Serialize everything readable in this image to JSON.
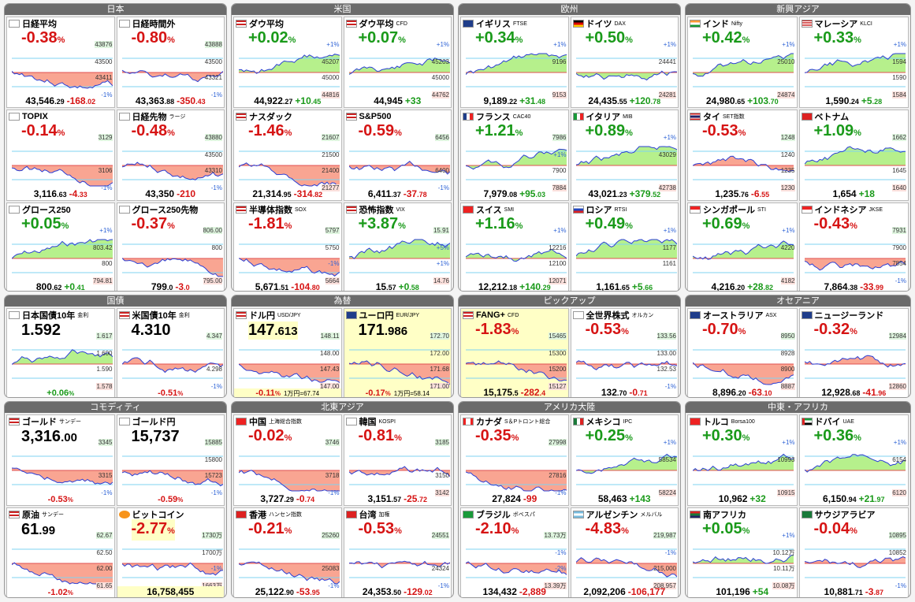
{
  "colors": {
    "up": "#1a9a1a",
    "down": "#d61414",
    "header": "#6b6b6b"
  },
  "groups": [
    {
      "title": "日本",
      "tiles": [
        {
          "name": "日経平均",
          "sub": "",
          "flag": "jp",
          "dir": "dn",
          "change": "-0.38",
          "value": "43,546",
          "value_dec": ".29",
          "delta": "-168",
          "delta_dec": ".02",
          "axis": [
            "43876",
            "43500",
            "43411",
            "-1%"
          ],
          "bg": ""
        },
        {
          "name": "日経時間外",
          "sub": "",
          "flag": "jp",
          "dir": "dn",
          "change": "-0.80",
          "value": "43,363",
          "value_dec": ".88",
          "delta": "-350",
          "delta_dec": ".43",
          "axis": [
            "43888",
            "43500",
            "43321",
            "-1%"
          ],
          "bg": ""
        },
        {
          "name": "TOPIX",
          "sub": "",
          "flag": "jp",
          "dir": "dn",
          "change": "-0.14",
          "value": "3,116",
          "value_dec": ".63",
          "delta": "-4",
          "delta_dec": ".33",
          "axis": [
            "3129",
            "",
            "3106",
            "-1%"
          ],
          "bg": ""
        },
        {
          "name": "日経先物",
          "sub": "ラージ",
          "flag": "jp",
          "dir": "dn",
          "change": "-0.48",
          "value": "43,350",
          "value_dec": "",
          "delta": "-210",
          "delta_dec": "",
          "axis": [
            "43880",
            "43500",
            "43310",
            "-1%"
          ],
          "bg": ""
        },
        {
          "name": "グロース250",
          "sub": "",
          "flag": "jp",
          "dir": "up",
          "change": "+0.05",
          "value": "800",
          "value_dec": ".62",
          "delta": "+0",
          "delta_dec": ".41",
          "axis": [
            "+1%",
            "803.42",
            "800",
            "794.81"
          ],
          "bg": ""
        },
        {
          "name": "グロース250先物",
          "sub": "",
          "flag": "jp",
          "dir": "dn",
          "change": "-0.37",
          "value": "799",
          "value_dec": ".0",
          "delta": "-3",
          "delta_dec": ".0",
          "axis": [
            "806.00",
            "800",
            "",
            "795.00"
          ],
          "bg": ""
        }
      ]
    },
    {
      "title": "米国",
      "tiles": [
        {
          "name": "ダウ平均",
          "sub": "",
          "flag": "us",
          "dir": "up",
          "change": "+0.02",
          "value": "44,922",
          "value_dec": ".27",
          "delta": "+10",
          "delta_dec": ".45",
          "axis": [
            "+1%",
            "45207",
            "45000",
            "44816"
          ],
          "bg": ""
        },
        {
          "name": "ダウ平均",
          "sub": "CFD",
          "flag": "us",
          "dir": "up",
          "change": "+0.07",
          "value": "44,945",
          "value_dec": "",
          "delta": "+33",
          "delta_dec": "",
          "axis": [
            "+1%",
            "45203",
            "45000",
            "44762"
          ],
          "bg": ""
        },
        {
          "name": "ナスダック",
          "sub": "",
          "flag": "us",
          "dir": "dn",
          "change": "-1.46",
          "value": "21,314",
          "value_dec": ".95",
          "delta": "-314",
          "delta_dec": ".82",
          "axis": [
            "21607",
            "21500",
            "21400",
            "21277"
          ],
          "bg": ""
        },
        {
          "name": "S&P500",
          "sub": "",
          "flag": "us",
          "dir": "dn",
          "change": "-0.59",
          "value": "6,411",
          "value_dec": ".37",
          "delta": "-37",
          "delta_dec": ".78",
          "axis": [
            "6456",
            "",
            "6400",
            "-1%"
          ],
          "bg": ""
        },
        {
          "name": "半導体指数",
          "sub": "SOX",
          "flag": "us",
          "dir": "dn",
          "change": "-1.81",
          "value": "5,671",
          "value_dec": ".51",
          "delta": "-104",
          "delta_dec": ".80",
          "axis": [
            "5797",
            "5750",
            "-1%",
            "5664"
          ],
          "bg": ""
        },
        {
          "name": "恐怖指数",
          "sub": "VIX",
          "flag": "us",
          "dir": "up",
          "change": "+3.87",
          "value": "15",
          "value_dec": ".57",
          "delta": "+0",
          "delta_dec": ".58",
          "axis": [
            "15.91",
            "+5%",
            "+1%",
            "14.76"
          ],
          "bg": ""
        }
      ]
    },
    {
      "title": "欧州",
      "tiles": [
        {
          "name": "イギリス",
          "sub": "FTSE",
          "flag": "gb",
          "dir": "up",
          "change": "+0.34",
          "value": "9,189",
          "value_dec": ".22",
          "delta": "+31",
          "delta_dec": ".48",
          "axis": [
            "+1%",
            "9196",
            "",
            "9153"
          ],
          "bg": ""
        },
        {
          "name": "ドイツ",
          "sub": "DAX",
          "flag": "de",
          "dir": "up",
          "change": "+0.50",
          "value": "24,435",
          "value_dec": ".55",
          "delta": "+120",
          "delta_dec": ".78",
          "axis": [
            "+1%",
            "24441",
            "",
            "24281"
          ],
          "bg": ""
        },
        {
          "name": "フランス",
          "sub": "CAC40",
          "flag": "fr",
          "dir": "up",
          "change": "+1.21",
          "value": "7,979",
          "value_dec": ".08",
          "delta": "+95",
          "delta_dec": ".03",
          "axis": [
            "7986",
            "+1%",
            "7900",
            "7884"
          ],
          "bg": ""
        },
        {
          "name": "イタリア",
          "sub": "MIB",
          "flag": "it",
          "dir": "up",
          "change": "+0.89",
          "value": "43,021",
          "value_dec": ".23",
          "delta": "+379",
          "delta_dec": ".52",
          "axis": [
            "+1%",
            "43029",
            "",
            "42738"
          ],
          "bg": ""
        },
        {
          "name": "スイス",
          "sub": "SMI",
          "flag": "ch",
          "dir": "up",
          "change": "+1.16",
          "value": "12,212",
          "value_dec": ".18",
          "delta": "+140",
          "delta_dec": ".29",
          "axis": [
            "+1%",
            "12216",
            "12100",
            "12071"
          ],
          "bg": ""
        },
        {
          "name": "ロシア",
          "sub": "RTSI",
          "flag": "ru",
          "dir": "up",
          "change": "+0.49",
          "value": "1,161",
          "value_dec": ".65",
          "delta": "+5",
          "delta_dec": ".66",
          "axis": [
            "+1%",
            "1177",
            "1161",
            ""
          ],
          "bg": ""
        }
      ]
    },
    {
      "title": "新興アジア",
      "tiles": [
        {
          "name": "インド",
          "sub": "Nifty",
          "flag": "in",
          "dir": "up",
          "change": "+0.42",
          "value": "24,980",
          "value_dec": ".65",
          "delta": "+103",
          "delta_dec": ".70",
          "axis": [
            "+1%",
            "25010",
            "",
            "24874"
          ],
          "bg": ""
        },
        {
          "name": "マレーシア",
          "sub": "KLCI",
          "flag": "my",
          "dir": "up",
          "change": "+0.33",
          "value": "1,590",
          "value_dec": ".24",
          "delta": "+5",
          "delta_dec": ".28",
          "axis": [
            "+1%",
            "1594",
            "1590",
            "1584"
          ],
          "bg": ""
        },
        {
          "name": "タイ",
          "sub": "SET指数",
          "flag": "th",
          "dir": "dn",
          "change": "-0.53",
          "value": "1,235",
          "value_dec": ".76",
          "delta": "-6",
          "delta_dec": ".55",
          "axis": [
            "1248",
            "1240",
            "1235",
            "1230"
          ],
          "bg": ""
        },
        {
          "name": "ベトナム",
          "sub": "",
          "flag": "vn",
          "dir": "up",
          "change": "+1.09",
          "value": "1,654",
          "value_dec": "",
          "delta": "+18",
          "delta_dec": "",
          "axis": [
            "1662",
            "",
            "1645",
            "1640"
          ],
          "bg": ""
        },
        {
          "name": "シンガポール",
          "sub": "STI",
          "flag": "sg",
          "dir": "up",
          "change": "+0.69",
          "value": "4,216",
          "value_dec": ".20",
          "delta": "+28",
          "delta_dec": ".82",
          "axis": [
            "+1%",
            "4220",
            "",
            "4182"
          ],
          "bg": ""
        },
        {
          "name": "インドネシア",
          "sub": "JKSE",
          "flag": "id",
          "dir": "dn",
          "change": "-0.43",
          "value": "7,864",
          "value_dec": ".38",
          "delta": "-33",
          "delta_dec": ".99",
          "axis": [
            "7931",
            "7900",
            "7854",
            "-1%"
          ],
          "bg": ""
        }
      ]
    },
    {
      "title": "国債",
      "tiles": [
        {
          "name": "日本国債10年",
          "sub": "金利",
          "flag": "jp",
          "dir": "up",
          "big": "1.592",
          "big_dec": "",
          "bottom_change": "+0.06",
          "axis": [
            "1.617",
            "1.600",
            "1.590",
            "1.578"
          ],
          "bg": ""
        },
        {
          "name": "米国債10年",
          "sub": "金利",
          "flag": "us",
          "dir": "dn",
          "big": "4.310",
          "big_dec": "",
          "bottom_change": "-0.51",
          "axis": [
            "4.347",
            "",
            "4.298",
            "-1%"
          ],
          "bg": ""
        }
      ]
    },
    {
      "title": "為替",
      "tiles": [
        {
          "name": "ドル円",
          "sub": "USD/JPY",
          "flag": "us",
          "dir": "dn",
          "big": "147",
          "big_dec": ".613",
          "big_yellow": true,
          "bottom_change": "-0.11",
          "extra": "1万円=67.74",
          "axis": [
            "148.11",
            "148.00",
            "147.43",
            "147.00"
          ],
          "bg": ""
        },
        {
          "name": "ユーロ円",
          "sub": "EUR/JPY",
          "flag": "eu",
          "dir": "dn",
          "big": "171",
          "big_dec": ".986",
          "big_yellow": true,
          "bottom_change": "-0.17",
          "extra": "1万円=58.14",
          "axis": [
            "172.70",
            "172.00",
            "171.68",
            "171.00"
          ],
          "bg": "yel"
        }
      ]
    },
    {
      "title": "ピックアップ",
      "tiles": [
        {
          "name": "FANG+",
          "sub": "CFD",
          "flag": "us",
          "dir": "dn",
          "change": "-1.83",
          "value": "15,175",
          "value_dec": ".5",
          "delta": "-282",
          "delta_dec": ".4",
          "axis": [
            "15465",
            "15300",
            "15200",
            "15127"
          ],
          "bg": "yel"
        },
        {
          "name": "全世界株式",
          "sub": "オルカン",
          "flag": "jp",
          "dir": "dn",
          "change": "-0.53",
          "value": "132",
          "value_dec": ".70",
          "delta": "-0",
          "delta_dec": ".71",
          "axis": [
            "133.56",
            "133.00",
            "132.53",
            "-1%"
          ],
          "bg": ""
        }
      ]
    },
    {
      "title": "オセアニア",
      "tiles": [
        {
          "name": "オーストラリア",
          "sub": "ASX",
          "flag": "au",
          "dir": "dn",
          "change": "-0.70",
          "value": "8,896",
          "value_dec": ".20",
          "delta": "-63",
          "delta_dec": ".10",
          "axis": [
            "8950",
            "8928",
            "8900",
            "8887"
          ],
          "bg": ""
        },
        {
          "name": "ニュージーランド",
          "sub": "",
          "flag": "nz",
          "dir": "dn",
          "change": "-0.32",
          "value": "12,928",
          "value_dec": ".68",
          "delta": "-41",
          "delta_dec": ".96",
          "axis": [
            "12984",
            "",
            "",
            "12860"
          ],
          "bg": ""
        }
      ]
    },
    {
      "title": "コモディティ",
      "tiles": [
        {
          "name": "ゴールド",
          "sub": "サンデー",
          "flag": "us",
          "dir": "dn",
          "big": "3,316",
          "big_dec": ".00",
          "bottom_change": "-0.53",
          "axis": [
            "3345",
            "",
            "3315",
            "-1%"
          ],
          "bg": ""
        },
        {
          "name": "ゴールド円",
          "sub": "",
          "flag": "jp",
          "dir": "dn",
          "big": "15,737",
          "big_dec": "",
          "bottom_change": "-0.59",
          "axis": [
            "15885",
            "15800",
            "15723",
            "-1%"
          ],
          "bg": ""
        },
        {
          "name": "原油",
          "sub": "サンデー",
          "flag": "us",
          "dir": "dn",
          "big": "61",
          "big_dec": ".99",
          "bottom_change": "-1.02",
          "axis": [
            "62.67",
            "62.50",
            "62.00",
            "61.65"
          ],
          "bg": ""
        },
        {
          "name": "ビットコイン",
          "sub": "",
          "flag": "btc",
          "dir": "dn",
          "change": "-2.77",
          "value_only": "16,758,455",
          "axis": [
            "1730万",
            "1700万",
            "-1%",
            "1663万"
          ],
          "bg": "",
          "change_yellow": true
        }
      ]
    },
    {
      "title": "北東アジア",
      "tiles": [
        {
          "name": "中国",
          "sub": "上海総合指数",
          "flag": "cn",
          "dir": "dn",
          "change": "-0.02",
          "value": "3,727",
          "value_dec": ".29",
          "delta": "-0",
          "delta_dec": ".74",
          "axis": [
            "3746",
            "",
            "3718",
            "-1%"
          ],
          "bg": ""
        },
        {
          "name": "韓国",
          "sub": "KOSPI",
          "flag": "kr",
          "dir": "dn",
          "change": "-0.81",
          "value": "3,151",
          "value_dec": ".57",
          "delta": "-25",
          "delta_dec": ".72",
          "axis": [
            "3185",
            "",
            "3150",
            "3142"
          ],
          "bg": ""
        },
        {
          "name": "香港",
          "sub": "ハンセン指数",
          "flag": "hk",
          "dir": "dn",
          "change": "-0.21",
          "value": "25,122",
          "value_dec": ".90",
          "delta": "-53",
          "delta_dec": ".95",
          "axis": [
            "25260",
            "",
            "25083",
            "-1%"
          ],
          "bg": ""
        },
        {
          "name": "台湾",
          "sub": "加権",
          "flag": "tw",
          "dir": "dn",
          "change": "-0.53",
          "value": "24,353",
          "value_dec": ".50",
          "delta": "-129",
          "delta_dec": ".02",
          "axis": [
            "24551",
            "",
            "24324",
            "-1%"
          ],
          "bg": ""
        }
      ]
    },
    {
      "title": "アメリカ大陸",
      "tiles": [
        {
          "name": "カナダ",
          "sub": "S＆Pトロント総合",
          "flag": "ca",
          "dir": "dn",
          "change": "-0.35",
          "value": "27,824",
          "value_dec": "",
          "delta": "-99",
          "delta_dec": "",
          "axis": [
            "27998",
            "",
            "27816",
            "-1%"
          ],
          "bg": ""
        },
        {
          "name": "メキシコ",
          "sub": "IPC",
          "flag": "mx",
          "dir": "up",
          "change": "+0.25",
          "value": "58,463",
          "value_dec": "",
          "delta": "+143",
          "delta_dec": "",
          "axis": [
            "+1%",
            "58534",
            "",
            "58224"
          ],
          "bg": ""
        },
        {
          "name": "ブラジル",
          "sub": "ボベスパ",
          "flag": "br",
          "dir": "dn",
          "change": "-2.10",
          "value": "134,432",
          "value_dec": "",
          "delta": "-2,889",
          "delta_dec": "",
          "axis": [
            "13.73万",
            "-1%",
            "-2%",
            "13.39万"
          ],
          "bg": ""
        },
        {
          "name": "アルゼンチン",
          "sub": "メルバル",
          "flag": "ar",
          "dir": "dn",
          "change": "-4.83",
          "value": "2,092,206",
          "value_dec": "",
          "delta": "-106,177",
          "delta_dec": "",
          "axis": [
            "219,987",
            "-1%",
            "215,000",
            "208,957"
          ],
          "bg": ""
        }
      ]
    },
    {
      "title": "中東・アフリカ",
      "tiles": [
        {
          "name": "トルコ",
          "sub": "Borsa100",
          "flag": "tr",
          "dir": "up",
          "change": "+0.30",
          "value": "10,962",
          "value_dec": "",
          "delta": "+32",
          "delta_dec": "",
          "axis": [
            "+1%",
            "10993",
            "",
            "10915"
          ],
          "bg": ""
        },
        {
          "name": "ドバイ",
          "sub": "UAE",
          "flag": "ae",
          "dir": "up",
          "change": "+0.36",
          "value": "6,150",
          "value_dec": ".94",
          "delta": "+21",
          "delta_dec": ".97",
          "axis": [
            "+1%",
            "6154",
            "",
            "6120"
          ],
          "bg": ""
        },
        {
          "name": "南アフリカ",
          "sub": "",
          "flag": "za",
          "dir": "up",
          "change": "+0.05",
          "value": "101,196",
          "value_dec": "",
          "delta": "+54",
          "delta_dec": "",
          "axis": [
            "+1%",
            "10.12万",
            "10.11万",
            "10.08万"
          ],
          "bg": ""
        },
        {
          "name": "サウジアラビア",
          "sub": "",
          "flag": "sa",
          "dir": "dn",
          "change": "-0.04",
          "value": "10,881",
          "value_dec": ".71",
          "delta": "-3",
          "delta_dec": ".87",
          "axis": [
            "10895",
            "10852",
            "",
            "-1%"
          ],
          "bg": ""
        }
      ]
    }
  ]
}
